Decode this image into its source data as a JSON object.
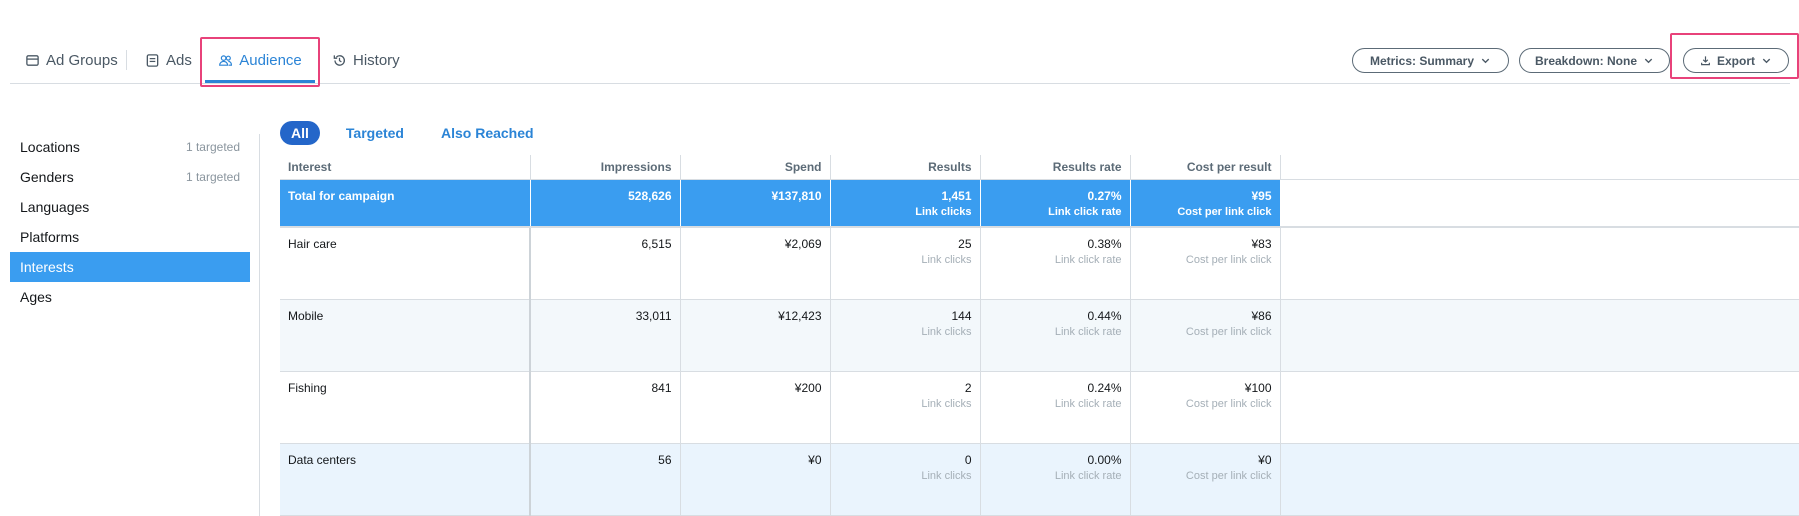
{
  "tabs": {
    "ad_groups": "Ad Groups",
    "ads": "Ads",
    "audience": "Audience",
    "history": "History"
  },
  "toolbar": {
    "metrics": "Metrics: Summary",
    "breakdown": "Breakdown: None",
    "export": "Export"
  },
  "sidebar": {
    "items": [
      {
        "label": "Locations",
        "meta": "1 targeted"
      },
      {
        "label": "Genders",
        "meta": "1 targeted"
      },
      {
        "label": "Languages",
        "meta": ""
      },
      {
        "label": "Platforms",
        "meta": ""
      },
      {
        "label": "Interests",
        "meta": ""
      },
      {
        "label": "Ages",
        "meta": ""
      }
    ],
    "active_item": "Interests"
  },
  "filters": {
    "all": "All",
    "targeted": "Targeted",
    "also_reached": "Also Reached",
    "active": "All"
  },
  "table": {
    "headers": [
      "Interest",
      "Impressions",
      "Spend",
      "Results",
      "Results rate",
      "Cost per result"
    ],
    "total": {
      "label": "Total for campaign",
      "impressions": "528,626",
      "spend": "¥137,810",
      "results": "1,451",
      "results_sub": "Link clicks",
      "rate": "0.27%",
      "rate_sub": "Link click rate",
      "cost": "¥95",
      "cost_sub": "Cost per link click"
    },
    "rows": [
      {
        "interest": "Hair care",
        "impressions": "6,515",
        "spend": "¥2,069",
        "results": "25",
        "results_sub": "Link clicks",
        "rate": "0.38%",
        "rate_sub": "Link click rate",
        "cost": "¥83",
        "cost_sub": "Cost per link click"
      },
      {
        "interest": "Mobile",
        "impressions": "33,011",
        "spend": "¥12,423",
        "results": "144",
        "results_sub": "Link clicks",
        "rate": "0.44%",
        "rate_sub": "Link click rate",
        "cost": "¥86",
        "cost_sub": "Cost per link click"
      },
      {
        "interest": "Fishing",
        "impressions": "841",
        "spend": "¥200",
        "results": "2",
        "results_sub": "Link clicks",
        "rate": "0.24%",
        "rate_sub": "Link click rate",
        "cost": "¥100",
        "cost_sub": "Cost per link click"
      },
      {
        "interest": "Data centers",
        "impressions": "56",
        "spend": "¥0",
        "results": "0",
        "results_sub": "Link clicks",
        "rate": "0.00%",
        "rate_sub": "Link click rate",
        "cost": "¥0",
        "cost_sub": "Cost per link click"
      }
    ]
  },
  "colors": {
    "accent": "#2b84d6",
    "active_row": "#3a9df0",
    "highlight": "#e8427a"
  }
}
